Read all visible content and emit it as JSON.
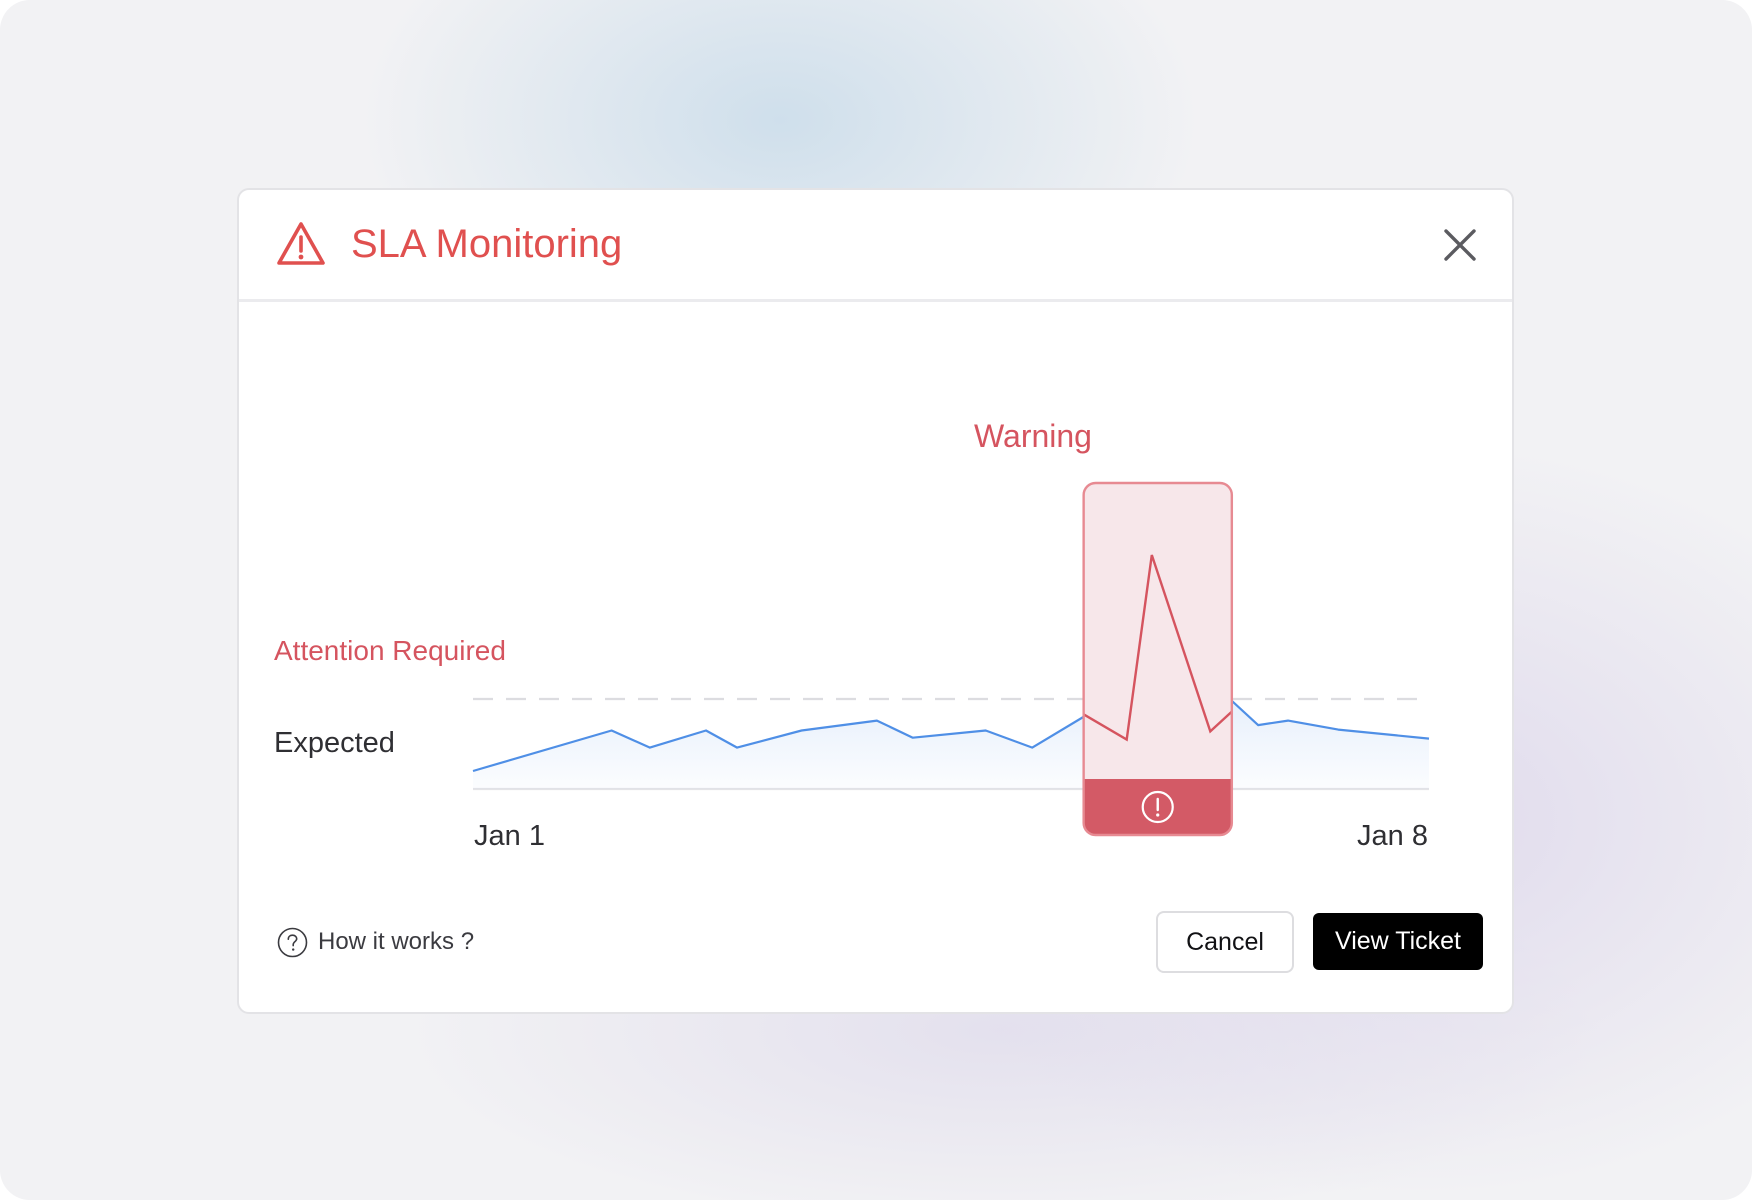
{
  "dialog": {
    "title": "SLA Monitoring",
    "icons": {
      "warning": "warning-triangle-icon",
      "close": "close-icon",
      "help": "question-circle-icon",
      "alert": "exclamation-circle-icon"
    },
    "colors": {
      "alert": "#e0504f",
      "alert_soft": "#f7e7ea",
      "alert_fill": "#d35a66",
      "line": "#4f8fe6",
      "primary": "#000000"
    }
  },
  "chart": {
    "attention_label": "Attention Required",
    "expected_label": "Expected",
    "warning_label": "Warning",
    "x_ticks": [
      "Jan 1",
      "Jan 8"
    ]
  },
  "chart_data": {
    "type": "line",
    "x_range": [
      "Jan 1",
      "Jan 8"
    ],
    "xlabel": "",
    "ylabel": "",
    "x_tick_labels": [
      "Jan 1",
      "Jan 8"
    ],
    "threshold_label": "Attention Required",
    "baseline_label": "Expected",
    "y_scale": "unlabeled, relative 0–100 (0 = axis baseline, 100 = Attention Required threshold)",
    "series": [
      {
        "x": [
          0.0,
          1.16,
          1.48,
          1.95,
          2.21,
          2.75,
          3.38,
          3.68,
          4.29,
          4.68,
          5.17,
          5.5,
          5.64,
          5.7,
          5.77,
          6.17,
          6.57,
          6.82,
          7.24,
          8.0
        ],
        "values": [
          20,
          65,
          46,
          65,
          46,
          65,
          76,
          57,
          65,
          46,
          85,
          86,
          77,
          84,
          95,
          120,
          71,
          76,
          66,
          56
        ]
      }
    ],
    "highlight": {
      "label": "Warning",
      "x_range": [
        5.11,
        6.35
      ],
      "spike_x": 5.68,
      "spike_value": 260
    },
    "grid": false,
    "legend": "none"
  },
  "footer": {
    "help_label": "How it works ?",
    "cancel_label": "Cancel",
    "primary_label": "View Ticket"
  }
}
